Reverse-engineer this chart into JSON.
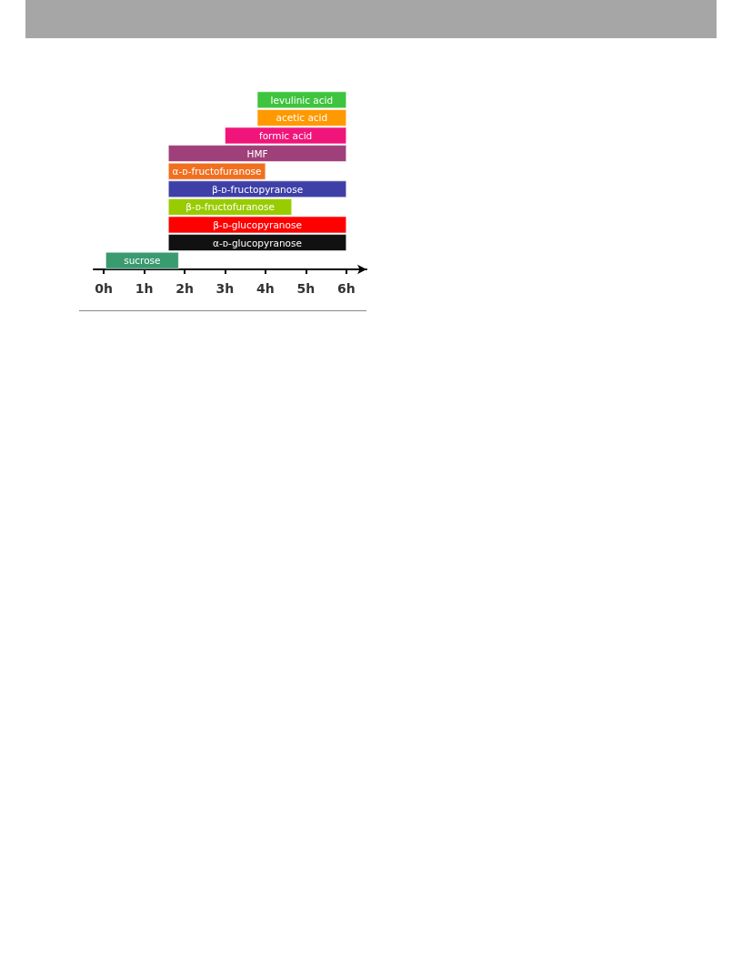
{
  "chart_data": {
    "type": "bar",
    "orientation": "horizontal",
    "categories": [
      "levulinic acid",
      "acetic acid",
      "formic acid",
      "HMF",
      "α-ᴅ-fructofuranose",
      "β-ᴅ-fructopyranose",
      "β-ᴅ-fructofuranose",
      "β-ᴅ-glucopyranose",
      "α-ᴅ-glucopyranose",
      "sucrose"
    ],
    "base": [
      3.8,
      3.8,
      3.0,
      1.6,
      1.6,
      1.6,
      1.6,
      1.6,
      1.6,
      0.05
    ],
    "values": [
      2.2,
      2.2,
      3.0,
      4.4,
      2.4,
      4.4,
      3.05,
      4.4,
      4.4,
      1.8
    ],
    "colors": [
      "#3ec43e",
      "#ff9900",
      "#f0157a",
      "#a0407a",
      "#f07020",
      "#3f3fa8",
      "#99cc00",
      "#ff0000",
      "#111111",
      "#3a9a70"
    ],
    "xlim": [
      -0.25,
      6.5
    ],
    "xticks": [
      {
        "value": 0,
        "label": "0h"
      },
      {
        "value": 1,
        "label": "1h"
      },
      {
        "value": 2,
        "label": "2h"
      },
      {
        "value": 3,
        "label": "3h"
      },
      {
        "value": 4,
        "label": "4h"
      },
      {
        "value": 5,
        "label": "5h"
      },
      {
        "value": 6,
        "label": "6h"
      }
    ],
    "grid": false
  }
}
